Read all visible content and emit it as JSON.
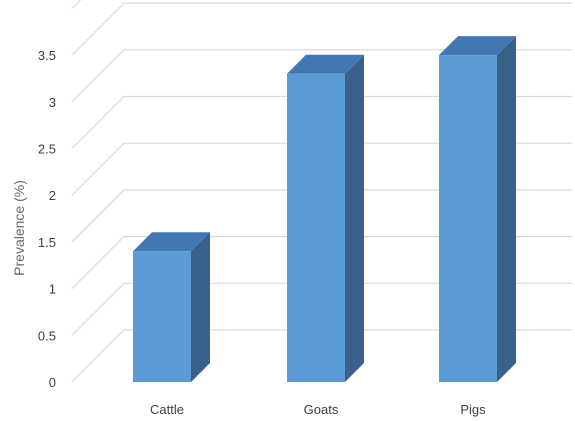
{
  "chart_data": {
    "type": "bar",
    "categories": [
      "Cattle",
      "Goats",
      "Pigs"
    ],
    "values": [
      1.4,
      3.3,
      3.5
    ],
    "title": "",
    "xlabel": "",
    "ylabel": "Prevalence (%)",
    "ylim": [
      0,
      3.5
    ],
    "yticks": [
      "0",
      "0.5",
      "1",
      "1.5",
      "2",
      "2.5",
      "3",
      "3.5"
    ],
    "grid": true,
    "colors": {
      "bar_front": "#5b9bd5",
      "bar_top": "#4178b4",
      "bar_side": "#3a6189",
      "grid": "#d9d9d9"
    }
  }
}
